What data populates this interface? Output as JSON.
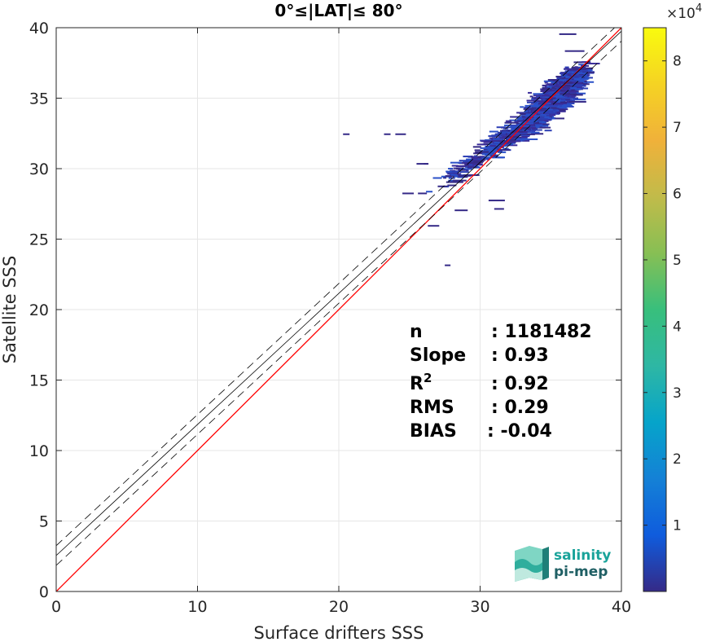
{
  "chart_data": {
    "type": "scatter",
    "title": "0°≤|LAT|≤ 80°",
    "xlabel": "Surface drifters SSS",
    "ylabel": "Satellite SSS",
    "xlim": [
      0,
      40
    ],
    "ylim": [
      0,
      40
    ],
    "xticks": [
      0,
      10,
      20,
      30,
      40
    ],
    "yticks": [
      0,
      5,
      10,
      15,
      20,
      25,
      30,
      35,
      40
    ],
    "grid": true,
    "identity_line": {
      "slope": 1,
      "intercept": 0,
      "color": "#ff0000"
    },
    "fit_line": {
      "slope": 0.93,
      "intercept": 2.55,
      "color": "#000000"
    },
    "fit_band": {
      "offset": 0.7,
      "style": "dashed"
    },
    "density_clusters": [
      {
        "x": 35.0,
        "y": 35.2,
        "sx": 1.4,
        "sy": 1.2,
        "weight": 1.0
      },
      {
        "x": 36.2,
        "y": 36.3,
        "sx": 0.9,
        "sy": 0.8,
        "weight": 0.8
      },
      {
        "x": 33.5,
        "y": 33.6,
        "sx": 1.2,
        "sy": 1.0,
        "weight": 0.6
      },
      {
        "x": 31.5,
        "y": 32.2,
        "sx": 1.4,
        "sy": 0.9,
        "weight": 0.3
      },
      {
        "x": 29.0,
        "y": 30.4,
        "sx": 1.8,
        "sy": 0.7,
        "weight": 0.15
      }
    ],
    "sparse_points": [
      [
        20.3,
        32.5
      ],
      [
        23.2,
        32.5
      ],
      [
        24.0,
        32.5
      ],
      [
        25.5,
        30.4
      ],
      [
        26.0,
        30.4
      ],
      [
        24.5,
        28.3
      ],
      [
        25.6,
        28.3
      ],
      [
        27.0,
        28.8
      ],
      [
        28.2,
        27.1
      ],
      [
        26.3,
        26.0
      ],
      [
        27.5,
        23.2
      ],
      [
        30.6,
        27.8
      ],
      [
        31.0,
        27.2
      ],
      [
        35.6,
        39.6
      ],
      [
        36.0,
        38.4
      ],
      [
        28.8,
        29.6
      ],
      [
        27.6,
        29.1
      ],
      [
        29.5,
        31.6
      ],
      [
        35.6,
        34.2
      ],
      [
        36.3,
        34.8
      ]
    ],
    "colorbar": {
      "min": 0,
      "max": 85000,
      "ticks": [
        1,
        2,
        3,
        4,
        5,
        6,
        7,
        8
      ],
      "multiplier": "×10",
      "exponent": "4",
      "colormap": "parula"
    },
    "stats": [
      {
        "label": "n",
        "value": ": 1181482"
      },
      {
        "label": "Slope",
        "value": ": 0.93"
      },
      {
        "label": "R",
        "sup": "2",
        "value": ": 0.92"
      },
      {
        "label": "RMS",
        "value": ": 0.29"
      },
      {
        "label": "BIAS",
        "value": ": -0.04"
      }
    ]
  },
  "logo": {
    "line1": "salinity",
    "line2": "pi-mep",
    "color1": "#1aa39a",
    "color2": "#1f5f64"
  }
}
